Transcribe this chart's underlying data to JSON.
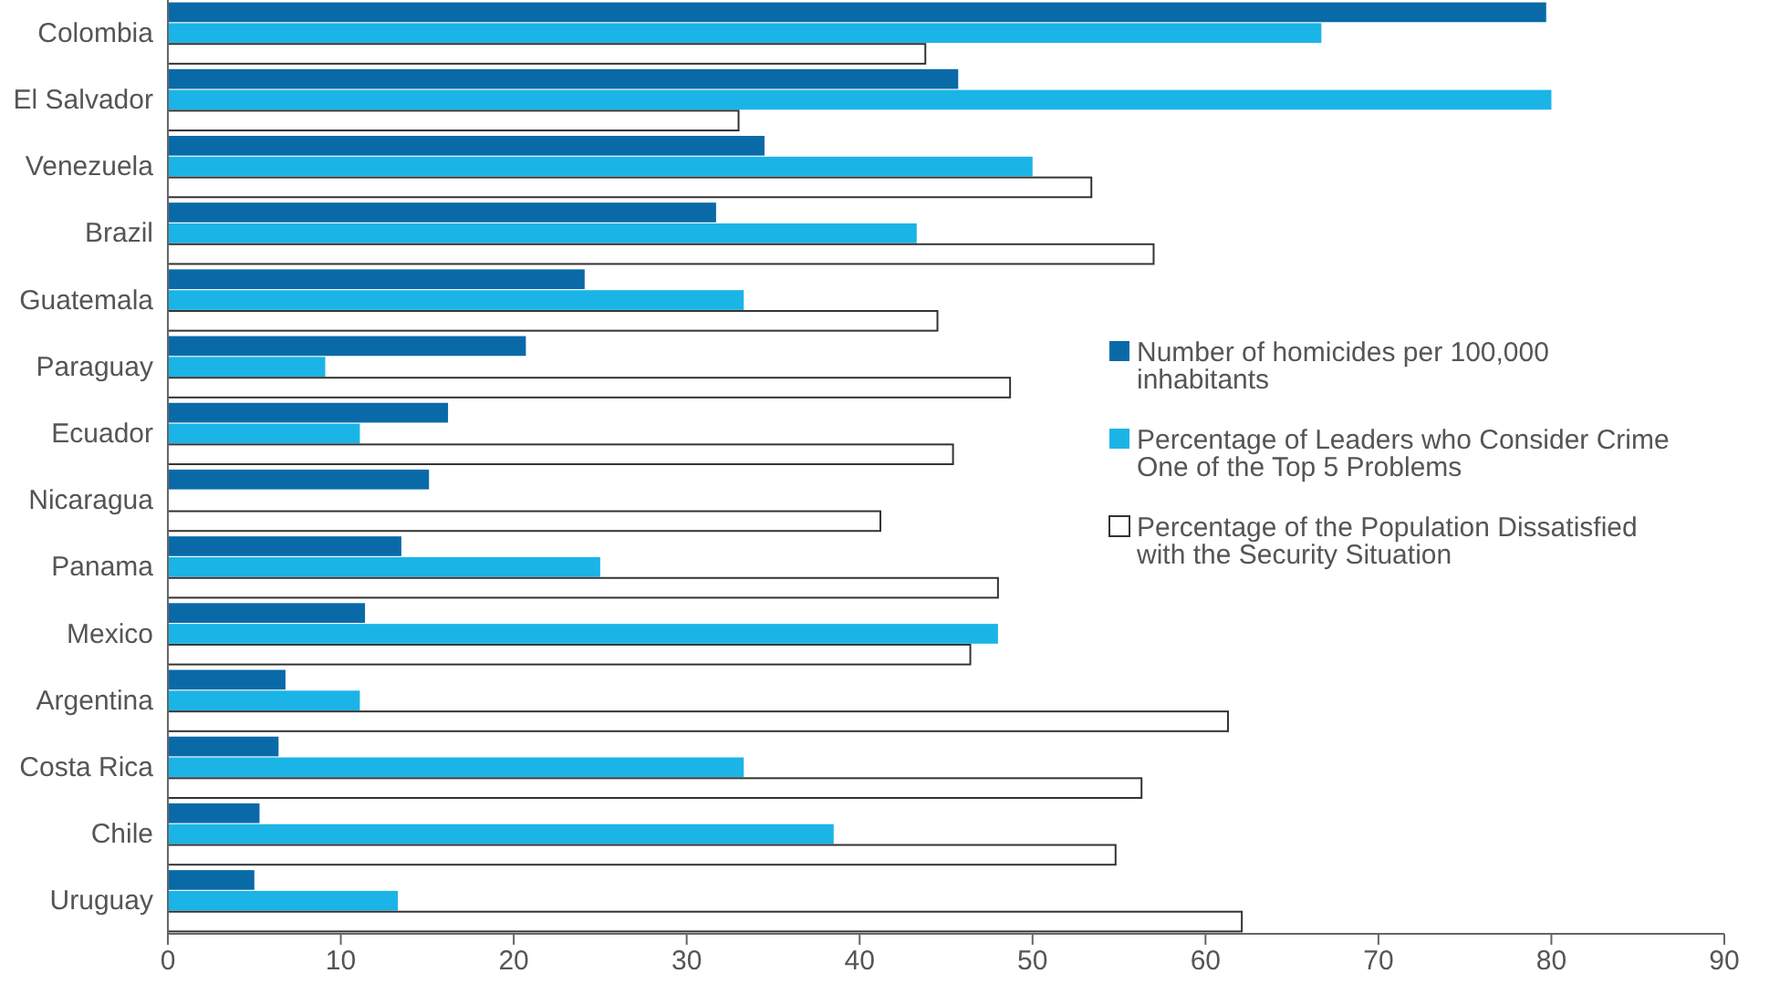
{
  "chart_data": {
    "type": "bar",
    "orientation": "horizontal",
    "categories": [
      "Colombia",
      "El Salvador",
      "Venezuela",
      "Brazil",
      "Guatemala",
      "Paraguay",
      "Ecuador",
      "Nicaragua",
      "Panama",
      "Mexico",
      "Argentina",
      "Costa Rica",
      "Chile",
      "Uruguay"
    ],
    "series": [
      {
        "name": "Number of homicides per 100,000 inhabitants",
        "color": "#0a6aa8",
        "values": [
          79.7,
          45.7,
          34.5,
          31.7,
          24.1,
          20.7,
          16.2,
          15.1,
          13.5,
          11.4,
          6.8,
          6.4,
          5.3,
          5.0
        ]
      },
      {
        "name": "Percentage of Leaders who Consider Crime One of the Top 5 Problems",
        "color": "#1bb4e6",
        "values": [
          66.7,
          80.0,
          50.0,
          43.3,
          33.3,
          9.1,
          11.1,
          null,
          25.0,
          48.0,
          11.1,
          33.3,
          38.5,
          13.3
        ]
      },
      {
        "name": "Percentage of the Population Dissatisfied with the Security Situation",
        "color": "#ffffff",
        "values": [
          43.8,
          33.0,
          53.4,
          57.0,
          44.5,
          48.7,
          45.4,
          41.2,
          48.0,
          46.4,
          61.3,
          56.3,
          54.8,
          62.1
        ]
      }
    ],
    "xlim": [
      0,
      90
    ],
    "xticks": [
      0,
      10,
      20,
      30,
      40,
      50,
      60,
      70,
      80,
      90
    ],
    "grid": false,
    "legend": "right"
  }
}
